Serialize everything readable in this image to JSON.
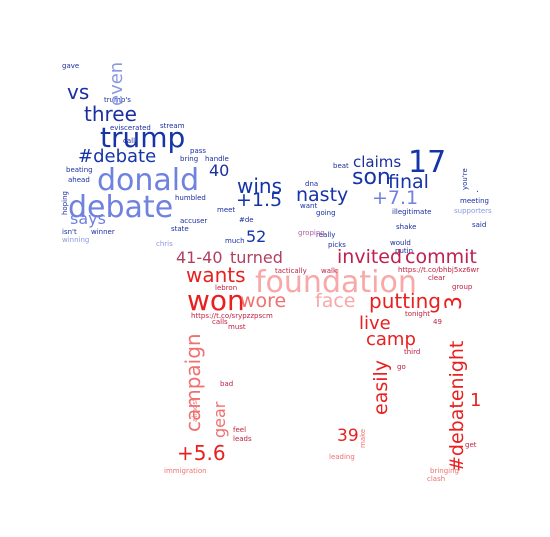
{
  "words": [
    {
      "text": "gave",
      "color": "#1a2fa0"
    },
    {
      "text": "trump's",
      "color": "#1a2fa0"
    },
    {
      "text": "even",
      "color": "#8a98e0"
    },
    {
      "text": "vs",
      "color": "#1a2fa0"
    },
    {
      "text": "three",
      "color": "#1a2fa0"
    },
    {
      "text": "trump",
      "color": "#1534a8"
    },
    {
      "text": "eviscerated",
      "color": "#1a2fa0"
    },
    {
      "text": "stream",
      "color": "#1a2fa0"
    },
    {
      "text": "call",
      "color": "#1a2fa0"
    },
    {
      "text": "pass",
      "color": "#1a2fa0"
    },
    {
      "text": "#debate",
      "color": "#1534a8"
    },
    {
      "text": "bring",
      "color": "#1a2fa0"
    },
    {
      "text": "handle",
      "color": "#1a2fa0"
    },
    {
      "text": "17",
      "color": "#1534a8"
    },
    {
      "text": "claims",
      "color": "#1a2fa0"
    },
    {
      "text": "beating",
      "color": "#1a2fa0"
    },
    {
      "text": "ahead",
      "color": "#1a2fa0"
    },
    {
      "text": "donald",
      "color": "#6f82e0"
    },
    {
      "text": "40",
      "color": "#1a2fa0"
    },
    {
      "text": "beat",
      "color": "#1a2fa0"
    },
    {
      "text": "son",
      "color": "#1534a8"
    },
    {
      "text": "final",
      "color": "#1534a8"
    },
    {
      "text": "you're",
      "color": "#1a2fa0"
    },
    {
      "text": "wins",
      "color": "#1534a8"
    },
    {
      "text": "dna",
      "color": "#1a2fa0"
    },
    {
      "text": "want",
      "color": "#1a2fa0"
    },
    {
      "text": "going",
      "color": "#1a2fa0"
    },
    {
      "text": "debate",
      "color": "#6f82e0"
    },
    {
      "text": "humbled",
      "color": "#1a2fa0"
    },
    {
      "text": "meet",
      "color": "#1a2fa0"
    },
    {
      "text": "+1.5",
      "color": "#1534a8"
    },
    {
      "text": "nasty",
      "color": "#1534a8"
    },
    {
      "text": "+7.1",
      "color": "#6f82e0"
    },
    {
      "text": "illegitimate",
      "color": "#1a2fa0"
    },
    {
      "text": ".",
      "color": "#1a2fa0"
    },
    {
      "text": "meeting",
      "color": "#1a2fa0"
    },
    {
      "text": "supporters",
      "color": "#8a98e0"
    },
    {
      "text": "hoping",
      "color": "#1a2fa0"
    },
    {
      "text": "says",
      "color": "#6f82e0"
    },
    {
      "text": "#de",
      "color": "#1a2fa0"
    },
    {
      "text": "isn't",
      "color": "#1a2fa0"
    },
    {
      "text": "winner",
      "color": "#1a2fa0"
    },
    {
      "text": "winning",
      "color": "#8a98e0"
    },
    {
      "text": "accuser",
      "color": "#1a2fa0"
    },
    {
      "text": "state",
      "color": "#1a2fa0"
    },
    {
      "text": "chris",
      "color": "#8a98e0"
    },
    {
      "text": "much",
      "color": "#1a2fa0"
    },
    {
      "text": "52",
      "color": "#1534a8"
    },
    {
      "text": "really",
      "color": "#1a2fa0"
    },
    {
      "text": "shake",
      "color": "#1a2fa0"
    },
    {
      "text": "said",
      "color": "#1a2fa0"
    },
    {
      "text": "groping",
      "color": "#b060a0"
    },
    {
      "text": "picks",
      "color": "#1a2fa0"
    },
    {
      "text": "would",
      "color": "#1a2fa0"
    },
    {
      "text": "putin",
      "color": "#1a2fa0"
    },
    {
      "text": "41-40",
      "color": "#b04060"
    },
    {
      "text": "turned",
      "color": "#b04060"
    },
    {
      "text": "invited",
      "color": "#c02050"
    },
    {
      "text": "commit",
      "color": "#c02050"
    },
    {
      "text": "https://t.co/bhbj5xz6wr",
      "color": "#c02040"
    },
    {
      "text": "wants",
      "color": "#e82020"
    },
    {
      "text": "foundation",
      "color": "#f8a8a8"
    },
    {
      "text": "tactically",
      "color": "#c02040"
    },
    {
      "text": "walk",
      "color": "#c02040"
    },
    {
      "text": "lebron",
      "color": "#c02040"
    },
    {
      "text": "clear",
      "color": "#c02040"
    },
    {
      "text": "group",
      "color": "#c02040"
    },
    {
      "text": "won",
      "color": "#e82020"
    },
    {
      "text": "wore",
      "color": "#f07070"
    },
    {
      "text": "face",
      "color": "#f8a8a8"
    },
    {
      "text": "putting",
      "color": "#e82020"
    },
    {
      "text": "https://t.co/srypzzpscm",
      "color": "#c02040"
    },
    {
      "text": "calls",
      "color": "#c02040"
    },
    {
      "text": "must",
      "color": "#c02040"
    },
    {
      "text": "live",
      "color": "#e82020"
    },
    {
      "text": "tonight",
      "color": "#c02040"
    },
    {
      "text": "3",
      "color": "#e82020"
    },
    {
      "text": "49",
      "color": "#c02040"
    },
    {
      "text": "camp",
      "color": "#e82020"
    },
    {
      "text": "third",
      "color": "#c02040"
    },
    {
      "text": "campaign",
      "color": "#f07070"
    },
    {
      "text": "go",
      "color": "#c02040"
    },
    {
      "text": "easily",
      "color": "#e82020"
    },
    {
      "text": "bad",
      "color": "#c02040"
    },
    {
      "text": "almost",
      "color": "#f07070"
    },
    {
      "text": "gear",
      "color": "#f07070"
    },
    {
      "text": "1",
      "color": "#e82020"
    },
    {
      "text": "#debatenight",
      "color": "#e82020"
    },
    {
      "text": "feel",
      "color": "#c02040"
    },
    {
      "text": "leads",
      "color": "#c02040"
    },
    {
      "text": "39",
      "color": "#e82020"
    },
    {
      "text": "make",
      "color": "#f07070"
    },
    {
      "text": "+5.6",
      "color": "#e82020"
    },
    {
      "text": "get",
      "color": "#c02040"
    },
    {
      "text": "leading",
      "color": "#f07070"
    },
    {
      "text": "immigration",
      "color": "#f07070"
    },
    {
      "text": "bringing",
      "color": "#f07070"
    },
    {
      "text": "clash",
      "color": "#f07070"
    }
  ]
}
